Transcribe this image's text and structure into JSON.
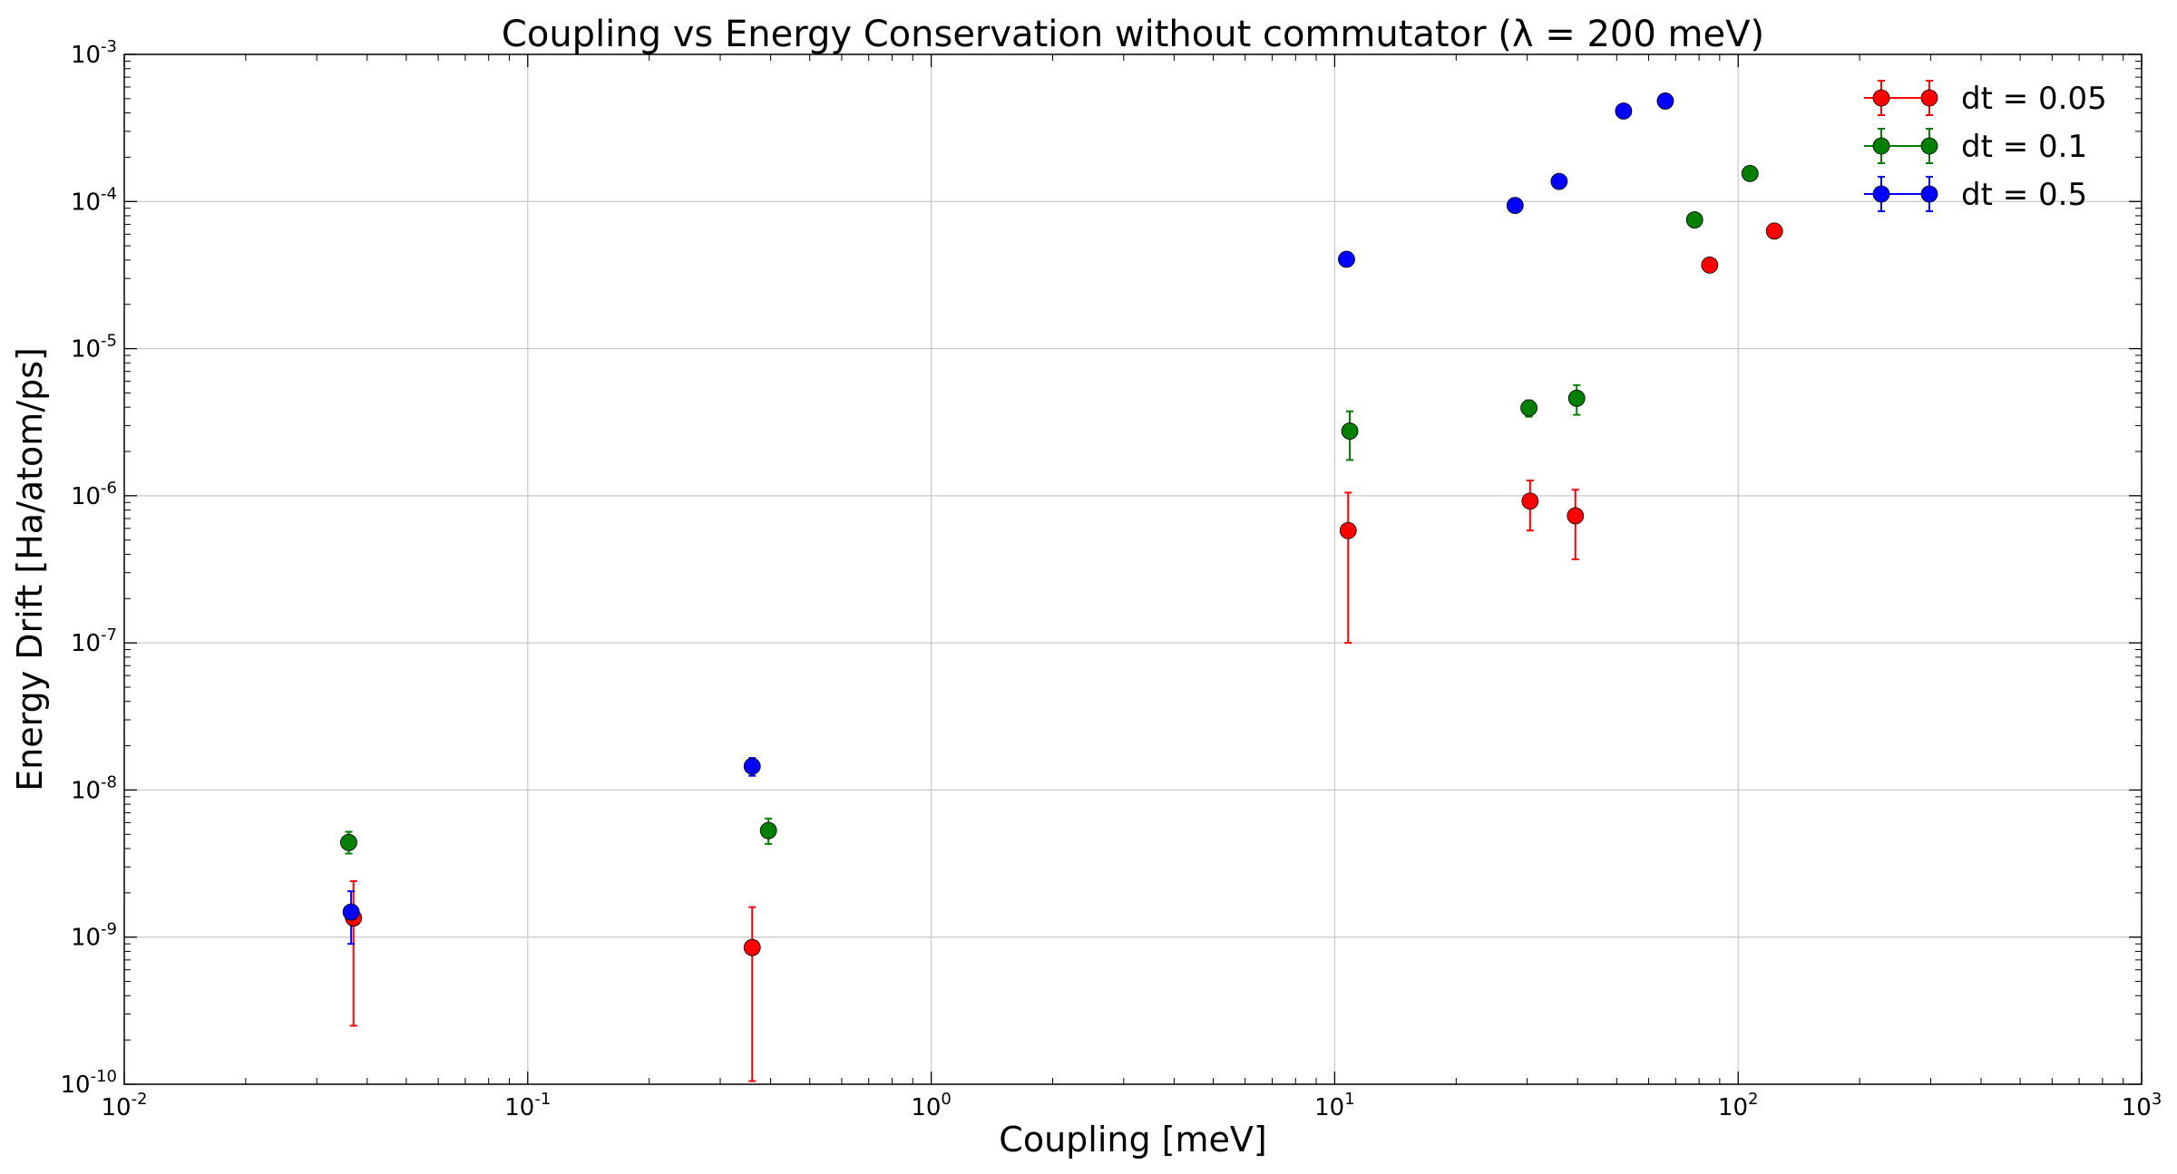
{
  "chart_data": {
    "type": "scatter",
    "title": "Coupling vs Energy Conservation without commutator (λ = 200 meV)",
    "xlabel": "Coupling [meV]",
    "ylabel": "Energy Drift [Ha/atom/ps]",
    "x_scale": "log",
    "y_scale": "log",
    "xlim": [
      0.01,
      1000
    ],
    "ylim": [
      1e-10,
      0.001
    ],
    "x_ticks": [
      {
        "value": 0.01,
        "label": "10",
        "exp": "-2"
      },
      {
        "value": 0.1,
        "label": "10",
        "exp": "-1"
      },
      {
        "value": 1,
        "label": "10",
        "exp": "0"
      },
      {
        "value": 10,
        "label": "10",
        "exp": "1"
      },
      {
        "value": 100,
        "label": "10",
        "exp": "2"
      },
      {
        "value": 1000,
        "label": "10",
        "exp": "3"
      }
    ],
    "y_ticks": [
      {
        "value": 1e-10,
        "label": "10",
        "exp": "-10"
      },
      {
        "value": 1e-09,
        "label": "10",
        "exp": "-9"
      },
      {
        "value": 1e-08,
        "label": "10",
        "exp": "-8"
      },
      {
        "value": 1e-07,
        "label": "10",
        "exp": "-7"
      },
      {
        "value": 1e-06,
        "label": "10",
        "exp": "-6"
      },
      {
        "value": 1e-05,
        "label": "10",
        "exp": "-5"
      },
      {
        "value": 0.0001,
        "label": "10",
        "exp": "-4"
      },
      {
        "value": 0.001,
        "label": "10",
        "exp": "-3"
      }
    ],
    "grid": true,
    "legend_position": "top-right",
    "series": [
      {
        "name": "dt = 0.05",
        "color": "#ff0000",
        "points": [
          {
            "x": 0.037,
            "y": 1.35e-09,
            "ylow": 2.5e-10,
            "yhigh": 2.4e-09
          },
          {
            "x": 0.36,
            "y": 8.5e-10,
            "ylow": 1.05e-10,
            "yhigh": 1.6e-09
          },
          {
            "x": 10.8,
            "y": 5.8e-07,
            "ylow": 1e-07,
            "yhigh": 1.05e-06
          },
          {
            "x": 30.5,
            "y": 9.2e-07,
            "ylow": 5.8e-07,
            "yhigh": 1.27e-06
          },
          {
            "x": 39.5,
            "y": 7.3e-07,
            "ylow": 3.7e-07,
            "yhigh": 1.1e-06
          },
          {
            "x": 85,
            "y": 3.7e-05
          },
          {
            "x": 123,
            "y": 6.3e-05
          }
        ]
      },
      {
        "name": "dt = 0.1",
        "color": "#007f00",
        "points": [
          {
            "x": 0.036,
            "y": 4.4e-09,
            "ylow": 3.7e-09,
            "yhigh": 5.2e-09
          },
          {
            "x": 0.395,
            "y": 5.3e-09,
            "ylow": 4.3e-09,
            "yhigh": 6.4e-09
          },
          {
            "x": 10.9,
            "y": 2.75e-06,
            "ylow": 1.75e-06,
            "yhigh": 3.75e-06
          },
          {
            "x": 30.3,
            "y": 3.95e-06,
            "ylow": 3.45e-06,
            "yhigh": 4.45e-06
          },
          {
            "x": 39.8,
            "y": 4.6e-06,
            "ylow": 3.55e-06,
            "yhigh": 5.65e-06
          },
          {
            "x": 78,
            "y": 7.5e-05
          },
          {
            "x": 107,
            "y": 0.000155
          }
        ]
      },
      {
        "name": "dt = 0.5",
        "color": "#0000ff",
        "points": [
          {
            "x": 0.0365,
            "y": 1.48e-09,
            "ylow": 9e-10,
            "yhigh": 2.05e-09
          },
          {
            "x": 0.36,
            "y": 1.45e-08,
            "ylow": 1.25e-08,
            "yhigh": 1.65e-08
          },
          {
            "x": 10.7,
            "y": 4.05e-05
          },
          {
            "x": 28,
            "y": 9.4e-05
          },
          {
            "x": 36,
            "y": 0.000137
          },
          {
            "x": 52,
            "y": 0.000412
          },
          {
            "x": 66,
            "y": 0.000482
          }
        ]
      }
    ]
  }
}
